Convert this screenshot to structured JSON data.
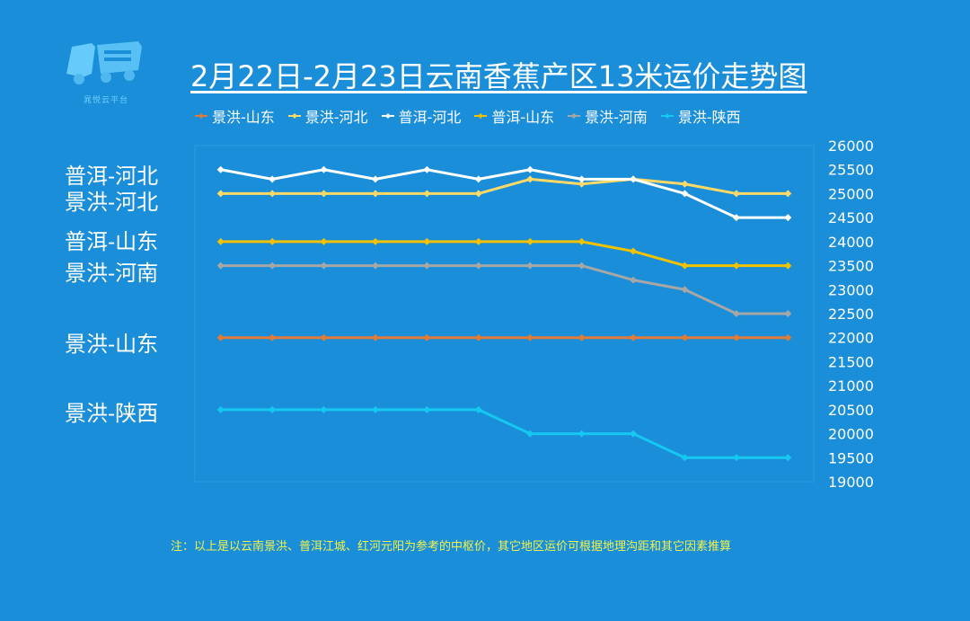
{
  "logo": {
    "icon": "truck-logo-icon",
    "text": "晁悦云平台"
  },
  "header": {
    "title": "2月22日-2月23日云南香蕉产区13米运价走势图"
  },
  "side_labels": [
    {
      "text": "普洱-河北",
      "series": 2
    },
    {
      "text": "景洪-河北",
      "series": 1
    },
    {
      "text": "普洱-山东",
      "series": 3
    },
    {
      "text": "景洪-河南",
      "series": 4
    },
    {
      "text": "景洪-山东",
      "series": 0
    },
    {
      "text": "景洪-陕西",
      "series": 5
    }
  ],
  "note": "注：以上是以云南景洪、普洱江城、红河元阳为参考的中枢价，其它地区运价可根据地理沟距和其它因素推算",
  "chart_data": {
    "type": "line",
    "title": "2月22日-2月23日云南香蕉产区13米运价走势图",
    "xlabel": "",
    "ylabel": "",
    "ylim": [
      19000,
      26000
    ],
    "yticks": [
      19000,
      19500,
      20000,
      20500,
      21000,
      21500,
      22000,
      22500,
      23000,
      23500,
      24000,
      24500,
      25000,
      25500,
      26000
    ],
    "y_axis_side": "right",
    "grid": false,
    "legend_position": "top",
    "x_count": 12,
    "series": [
      {
        "name": "景洪-山东",
        "color": "#e07b39",
        "values": [
          22000,
          22000,
          22000,
          22000,
          22000,
          22000,
          22000,
          22000,
          22000,
          22000,
          22000,
          22000
        ]
      },
      {
        "name": "景洪-河北",
        "color": "#ffd966",
        "values": [
          25000,
          25000,
          25000,
          25000,
          25000,
          25000,
          25300,
          25200,
          25300,
          25200,
          25000,
          25000
        ]
      },
      {
        "name": "普洱-河北",
        "color": "#ffffff",
        "values": [
          25500,
          25300,
          25500,
          25300,
          25500,
          25300,
          25500,
          25300,
          25300,
          25000,
          24500,
          24500
        ]
      },
      {
        "name": "普洱-山东",
        "color": "#f2c200",
        "values": [
          24000,
          24000,
          24000,
          24000,
          24000,
          24000,
          24000,
          24000,
          23800,
          23500,
          23500,
          23500
        ]
      },
      {
        "name": "景洪-河南",
        "color": "#a6a6a6",
        "values": [
          23500,
          23500,
          23500,
          23500,
          23500,
          23500,
          23500,
          23500,
          23200,
          23000,
          22500,
          22500
        ]
      },
      {
        "name": "景洪-陕西",
        "color": "#14c8f2",
        "values": [
          20500,
          20500,
          20500,
          20500,
          20500,
          20500,
          20000,
          20000,
          20000,
          19500,
          19500,
          19500
        ]
      }
    ]
  }
}
